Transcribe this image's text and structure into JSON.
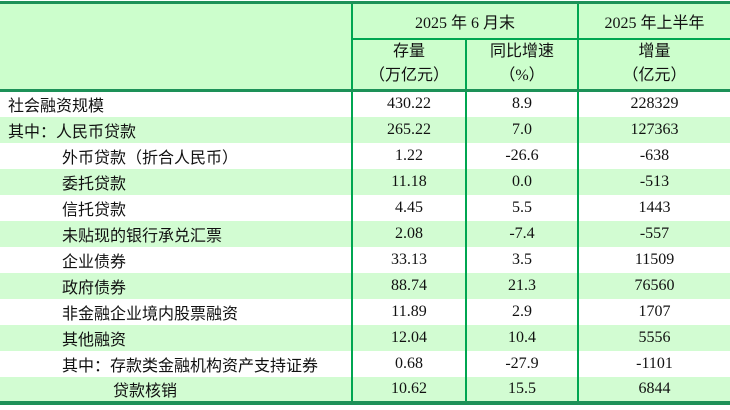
{
  "table": {
    "title_semantic": "social-financing-scale-table",
    "header": {
      "corner": "",
      "group1": "2025 年 6 月末",
      "group2": "2025 年上半年",
      "sub": [
        {
          "line1": "存量",
          "line2": "（万亿元）"
        },
        {
          "line1": "同比增速",
          "line2": "（%）"
        },
        {
          "line1": "增量",
          "line2": "（亿元）"
        }
      ]
    },
    "rows": [
      {
        "label": "社会融资规模",
        "indent": 0,
        "stock": "430.22",
        "growth": "8.9",
        "increment": "228329"
      },
      {
        "label": "其中：人民币贷款",
        "indent": 0,
        "stock": "265.22",
        "growth": "7.0",
        "increment": "127363"
      },
      {
        "label": "外币贷款（折合人民币）",
        "indent": 1,
        "stock": "1.22",
        "growth": "-26.6",
        "increment": "-638"
      },
      {
        "label": "委托贷款",
        "indent": 1,
        "stock": "11.18",
        "growth": "0.0",
        "increment": "-513"
      },
      {
        "label": "信托贷款",
        "indent": 1,
        "stock": "4.45",
        "growth": "5.5",
        "increment": "1443"
      },
      {
        "label": "未贴现的银行承兑汇票",
        "indent": 1,
        "stock": "2.08",
        "growth": "-7.4",
        "increment": "-557"
      },
      {
        "label": "企业债券",
        "indent": 1,
        "stock": "33.13",
        "growth": "3.5",
        "increment": "11509"
      },
      {
        "label": "政府债券",
        "indent": 1,
        "stock": "88.74",
        "growth": "21.3",
        "increment": "76560"
      },
      {
        "label": "非金融企业境内股票融资",
        "indent": 1,
        "stock": "11.89",
        "growth": "2.9",
        "increment": "1707"
      },
      {
        "label": "其他融资",
        "indent": 1,
        "stock": "12.04",
        "growth": "10.4",
        "increment": "5556"
      },
      {
        "label": "其中：存款类金融机构资产支持证券",
        "indent": 1,
        "stock": "0.68",
        "growth": "-27.9",
        "increment": "-1101"
      },
      {
        "label": "贷款核销",
        "indent": 2,
        "stock": "10.62",
        "growth": "15.5",
        "increment": "6844"
      }
    ],
    "colors": {
      "header_bg": "#ccfecc",
      "row_alt_bg": "#d2fcd2",
      "grid_line": "#00a651",
      "outer_line": "#1d9158",
      "text": "#111111"
    }
  }
}
